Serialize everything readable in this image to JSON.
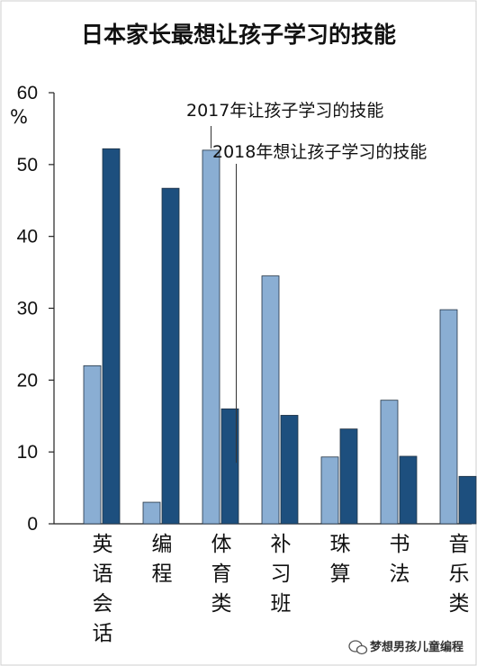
{
  "chart_data": {
    "type": "bar",
    "title": "日本家长最想让孩子学习的技能",
    "unit_label": "%",
    "categories": [
      "英语会话",
      "编程",
      "体育类",
      "补习班",
      "珠算",
      "书法",
      "音乐类"
    ],
    "series": [
      {
        "name": "2017年让孩子学习的技能",
        "values": [
          22,
          3,
          52,
          34.5,
          9.3,
          17.2,
          29.8
        ],
        "color": "#8aaed3"
      },
      {
        "name": "2018年想让孩子学习的技能",
        "values": [
          52.2,
          46.7,
          16,
          15.1,
          13.2,
          9.4,
          6.6
        ],
        "color": "#1d4f7e"
      }
    ],
    "ylim": [
      0,
      60
    ],
    "yticks": [
      0,
      10,
      20,
      30,
      40,
      50,
      60
    ],
    "grid": false,
    "legend_placement": "top-right, callout lines to 体育类 bars"
  },
  "watermark": {
    "text": "梦想男孩儿童编程",
    "icon": "wechat-icon"
  }
}
